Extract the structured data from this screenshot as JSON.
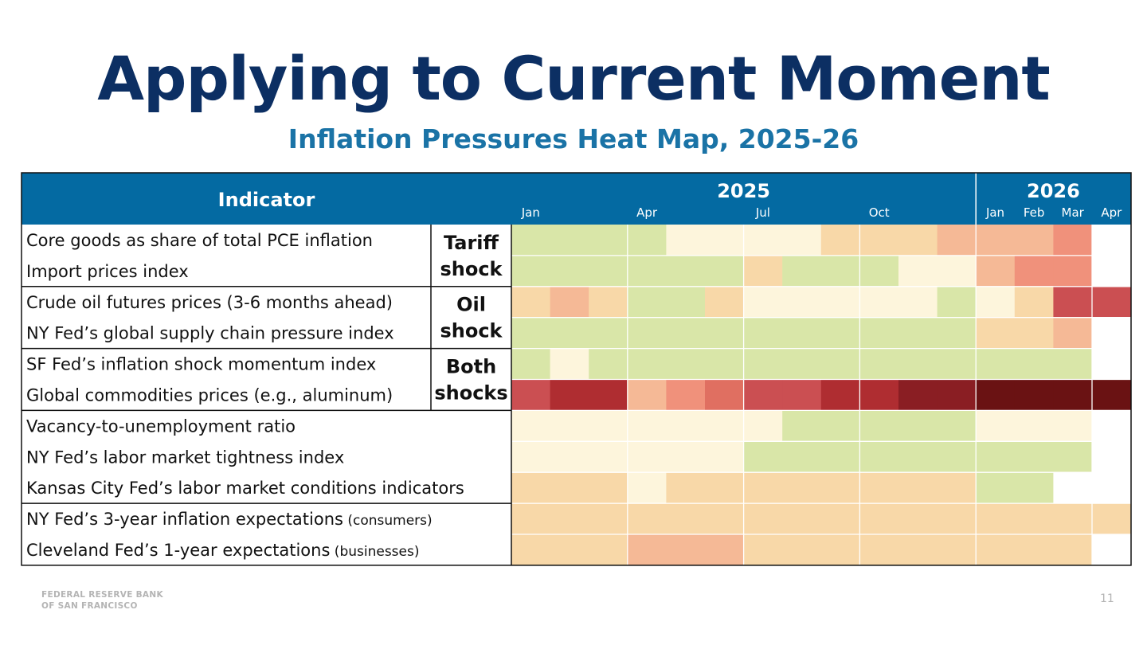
{
  "slide": {
    "title": "Applying to Current Moment",
    "subtitle": "Inflation Pressures Heat Map, 2025-26",
    "footer_line1": "FEDERAL RESERVE BANK",
    "footer_line2": "OF SAN FRANCISCO",
    "page_number": "11"
  },
  "chart_data": {
    "type": "heatmap",
    "title": "Inflation Pressures Heat Map, 2025-26",
    "header": {
      "indicator_label": "Indicator",
      "years": [
        {
          "label": "2025",
          "month_span": 12
        },
        {
          "label": "2026",
          "month_span": 4
        }
      ],
      "month_labels": [
        {
          "label": "Jan",
          "month_index": 0
        },
        {
          "label": "Apr",
          "month_index": 3
        },
        {
          "label": "Jul",
          "month_index": 6
        },
        {
          "label": "Oct",
          "month_index": 9
        },
        {
          "label": "Jan",
          "month_index": 12
        },
        {
          "label": "Feb",
          "month_index": 13
        },
        {
          "label": "Mar",
          "month_index": 14
        },
        {
          "label": "Apr",
          "month_index": 15
        }
      ]
    },
    "color_scale": {
      "0": "#ffffff",
      "1": "#d9e6a8",
      "2": "#fdf5dc",
      "3": "#f8d8a8",
      "4": "#f5b996",
      "5": "#f0917b",
      "6": "#e06f61",
      "7": "#cb4f52",
      "8": "#af2d31",
      "9": "#8a1e23",
      "10": "#6a1213"
    },
    "groups": [
      {
        "label_lines": [
          "Tariff",
          "shock"
        ],
        "row_start": 0,
        "row_count": 2
      },
      {
        "label_lines": [
          "Oil",
          "shock"
        ],
        "row_start": 2,
        "row_count": 2
      },
      {
        "label_lines": [
          "Both",
          "shocks"
        ],
        "row_start": 4,
        "row_count": 2
      },
      {
        "label_lines": [],
        "row_start": 6,
        "row_count": 3
      },
      {
        "label_lines": [],
        "row_start": 9,
        "row_count": 2
      }
    ],
    "rows": [
      {
        "label": "Core goods as share of total PCE inflation",
        "suffix": "",
        "values": [
          1,
          1,
          1,
          1,
          2,
          2,
          2,
          2,
          3,
          3,
          3,
          4,
          4,
          4,
          5,
          0
        ]
      },
      {
        "label": "Import prices index",
        "suffix": "",
        "values": [
          1,
          1,
          1,
          1,
          1,
          1,
          3,
          1,
          1,
          1,
          2,
          2,
          4,
          5,
          5,
          0
        ]
      },
      {
        "label": "Crude oil futures prices (3-6 months ahead)",
        "suffix": "",
        "values": [
          3,
          4,
          3,
          1,
          1,
          3,
          2,
          2,
          2,
          2,
          2,
          1,
          2,
          3,
          7,
          7
        ]
      },
      {
        "label": "NY Fed’s global supply chain pressure index",
        "suffix": "",
        "values": [
          1,
          1,
          1,
          1,
          1,
          1,
          1,
          1,
          1,
          1,
          1,
          1,
          3,
          3,
          4,
          0
        ]
      },
      {
        "label": "SF Fed’s inflation shock momentum index",
        "suffix": "",
        "values": [
          1,
          2,
          1,
          1,
          1,
          1,
          1,
          1,
          1,
          1,
          1,
          1,
          1,
          1,
          1,
          0
        ]
      },
      {
        "label": "Global commodities prices (e.g., aluminum)",
        "suffix": "",
        "values": [
          7,
          8,
          8,
          4,
          5,
          6,
          7,
          7,
          8,
          8,
          9,
          9,
          10,
          10,
          10,
          10
        ]
      },
      {
        "label": "Vacancy-to-unemployment ratio",
        "suffix": "",
        "values": [
          2,
          2,
          2,
          2,
          2,
          2,
          2,
          1,
          1,
          1,
          1,
          1,
          2,
          2,
          2,
          0
        ]
      },
      {
        "label": "NY Fed’s labor market tightness index",
        "suffix": "",
        "values": [
          2,
          2,
          2,
          2,
          2,
          2,
          1,
          1,
          1,
          1,
          1,
          1,
          1,
          1,
          1,
          0
        ]
      },
      {
        "label": "Kansas City Fed’s labor market conditions indicators",
        "suffix": "",
        "values": [
          3,
          3,
          3,
          2,
          3,
          3,
          3,
          3,
          3,
          3,
          3,
          3,
          1,
          1,
          0,
          0
        ]
      },
      {
        "label": "NY Fed’s 3-year inflation expectations",
        "suffix": "(consumers)",
        "values": [
          3,
          3,
          3,
          3,
          3,
          3,
          3,
          3,
          3,
          3,
          3,
          3,
          3,
          3,
          3,
          3
        ]
      },
      {
        "label": "Cleveland Fed’s 1-year expectations",
        "suffix": "(businesses)",
        "values": [
          3,
          3,
          3,
          4,
          4,
          4,
          3,
          3,
          3,
          3,
          3,
          3,
          3,
          3,
          3,
          0
        ]
      }
    ]
  }
}
